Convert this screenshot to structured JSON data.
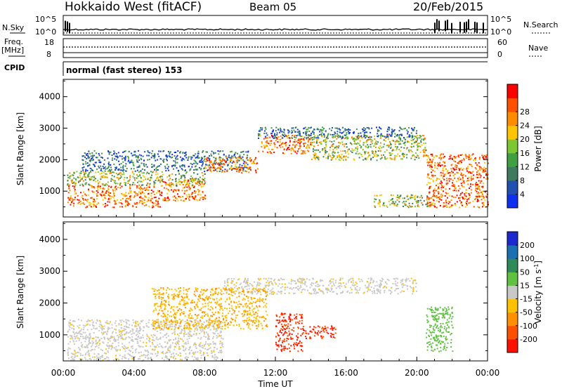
{
  "header": {
    "station": "Hokkaido West (fitACF)",
    "beam": "Beam 05",
    "date": "20/Feb/2015"
  },
  "panels": {
    "nsky_label": "N.Sky",
    "nsearch_label": "N.Search",
    "nsky_ticks": [
      "10^5",
      "10^0"
    ],
    "nsearch_ticks": [
      "10^5",
      "10^0"
    ],
    "freq_label": "Freq.",
    "freq_unit": "[MHz]",
    "freq_ticks": [
      "18",
      "8"
    ],
    "nave_label": "Nave",
    "nave_ticks": [
      "60",
      "0"
    ],
    "cpid_label": "CPID",
    "cpid_value": "normal (fast stereo) 153"
  },
  "axes": {
    "xlabel": "Time UT",
    "x_ticks": [
      "00:00",
      "04:00",
      "08:00",
      "12:00",
      "16:00",
      "20:00",
      "00:00"
    ],
    "ylabel": "Slant Range [km]",
    "y_ticks": [
      "1000",
      "2000",
      "3000",
      "4000"
    ],
    "ylim": [
      180,
      4550
    ]
  },
  "colorbars": {
    "power": {
      "label": "Power [dB]",
      "ticks": [
        "4",
        "8",
        "12",
        "16",
        "20",
        "24",
        "28"
      ],
      "colors": [
        "#1030f0",
        "#2050b0",
        "#3e7a5e",
        "#40a040",
        "#7dc832",
        "#ffc400",
        "#ff8c00",
        "#ff5000",
        "#ff0000"
      ]
    },
    "velocity": {
      "label": "Velocity [m s",
      "label_sup": "-1",
      "label_end": "]",
      "ticks": [
        "200",
        "100",
        "50",
        "15",
        "-15",
        "-50",
        "-100",
        "-200"
      ],
      "colors": [
        "#1a2ad0",
        "#1a70b0",
        "#2f8a5a",
        "#60c040",
        "#c8c8c8",
        "#ffc000",
        "#ff9000",
        "#ff5000",
        "#ff1000"
      ]
    }
  },
  "chart_data": {
    "type": "heatmap",
    "title": "Hokkaido West (fitACF) Beam 05 20/Feb/2015",
    "xlabel": "Time UT",
    "ylabel": "Slant Range [km]",
    "x_range_hours": [
      0,
      24
    ],
    "ylim": [
      180,
      4550
    ],
    "power_scatter_bands": [
      {
        "t0": 0.2,
        "t1": 5.5,
        "r0": 500,
        "r1": 1200,
        "level": "high"
      },
      {
        "t0": 5.5,
        "t1": 8.0,
        "r0": 700,
        "r1": 1400,
        "level": "high"
      },
      {
        "t0": 0.2,
        "t1": 8.0,
        "r0": 1200,
        "r1": 1650,
        "level": "mid"
      },
      {
        "t0": 1.0,
        "t1": 10.5,
        "r0": 1650,
        "r1": 2300,
        "level": "low"
      },
      {
        "t0": 8.0,
        "t1": 11.0,
        "r0": 1600,
        "r1": 2100,
        "level": "high"
      },
      {
        "t0": 11.0,
        "t1": 14.0,
        "r0": 2200,
        "r1": 2800,
        "level": "high"
      },
      {
        "t0": 14.0,
        "t1": 20.5,
        "r0": 2000,
        "r1": 2800,
        "level": "mid"
      },
      {
        "t0": 11.0,
        "t1": 20.0,
        "r0": 2700,
        "r1": 3050,
        "level": "low"
      },
      {
        "t0": 17.5,
        "t1": 21.0,
        "r0": 500,
        "r1": 900,
        "level": "mid"
      },
      {
        "t0": 20.5,
        "t1": 24.0,
        "r0": 500,
        "r1": 2200,
        "level": "high"
      }
    ],
    "velocity_scatter_bands": [
      {
        "t0": 0.2,
        "t1": 9.0,
        "r0": 200,
        "r1": 1500,
        "vel": "-15..15"
      },
      {
        "t0": 9.0,
        "t1": 20.0,
        "r0": 2300,
        "r1": 2800,
        "vel": "-15..15"
      },
      {
        "t0": 12.0,
        "t1": 13.5,
        "r0": 500,
        "r1": 1700,
        "vel": "-200..-100"
      },
      {
        "t0": 13.5,
        "t1": 15.5,
        "r0": 900,
        "r1": 1300,
        "vel": "-200..-100"
      },
      {
        "t0": 5.0,
        "t1": 11.5,
        "r0": 1200,
        "r1": 2500,
        "vel": "-50..-15"
      },
      {
        "t0": 20.5,
        "t1": 22.0,
        "r0": 500,
        "r1": 1900,
        "vel": "15..50"
      }
    ]
  }
}
